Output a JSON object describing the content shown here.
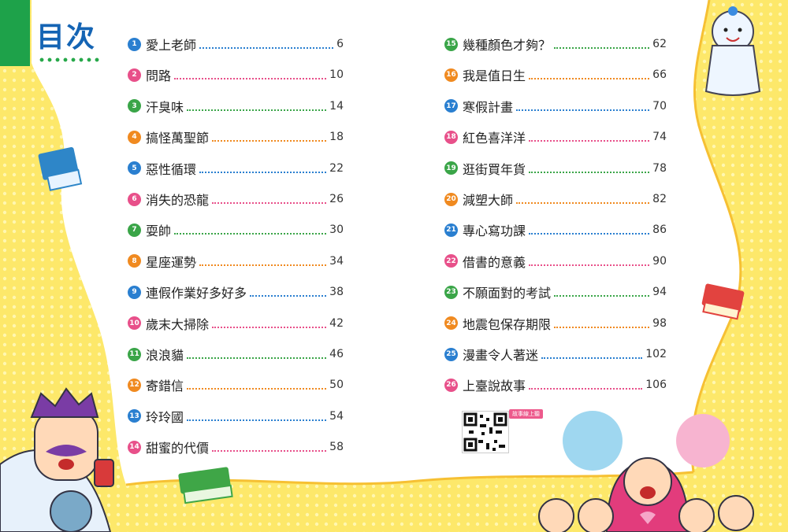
{
  "title": "目次",
  "colors": {
    "accent_green": "#1ea24a",
    "title_blue": "#1464b4",
    "background_yellow": "#fde86a"
  },
  "qr": {
    "label": "故事線上聽"
  },
  "toc_left": [
    {
      "num": "1",
      "title": "愛上老師",
      "page": "6",
      "color": "#2a7fd0"
    },
    {
      "num": "2",
      "title": "問路",
      "page": "10",
      "color": "#e8508a"
    },
    {
      "num": "3",
      "title": "汗臭味",
      "page": "14",
      "color": "#3aa548"
    },
    {
      "num": "4",
      "title": "搞怪萬聖節",
      "page": "18",
      "color": "#f08a20"
    },
    {
      "num": "5",
      "title": "惡性循環",
      "page": "22",
      "color": "#2a7fd0"
    },
    {
      "num": "6",
      "title": "消失的恐龍",
      "page": "26",
      "color": "#e8508a"
    },
    {
      "num": "7",
      "title": "耍帥",
      "page": "30",
      "color": "#3aa548"
    },
    {
      "num": "8",
      "title": "星座運勢",
      "page": "34",
      "color": "#f08a20"
    },
    {
      "num": "9",
      "title": "連假作業好多好多",
      "page": "38",
      "color": "#2a7fd0"
    },
    {
      "num": "10",
      "title": "歲末大掃除",
      "page": "42",
      "color": "#e8508a"
    },
    {
      "num": "11",
      "title": "浪浪貓",
      "page": "46",
      "color": "#3aa548"
    },
    {
      "num": "12",
      "title": "寄錯信",
      "page": "50",
      "color": "#f08a20"
    },
    {
      "num": "13",
      "title": "玲玲國",
      "page": "54",
      "color": "#2a7fd0"
    },
    {
      "num": "14",
      "title": "甜蜜的代價",
      "page": "58",
      "color": "#e8508a"
    }
  ],
  "toc_right": [
    {
      "num": "15",
      "title": "幾種顏色才夠？",
      "page": "62",
      "color": "#3aa548"
    },
    {
      "num": "16",
      "title": "我是值日生",
      "page": "66",
      "color": "#f08a20"
    },
    {
      "num": "17",
      "title": "寒假計畫",
      "page": "70",
      "color": "#2a7fd0"
    },
    {
      "num": "18",
      "title": "紅色喜洋洋",
      "page": "74",
      "color": "#e8508a"
    },
    {
      "num": "19",
      "title": "逛街買年貨",
      "page": "78",
      "color": "#3aa548"
    },
    {
      "num": "20",
      "title": "減塑大師",
      "page": "82",
      "color": "#f08a20"
    },
    {
      "num": "21",
      "title": "專心寫功課",
      "page": "86",
      "color": "#2a7fd0"
    },
    {
      "num": "22",
      "title": "借書的意義",
      "page": "90",
      "color": "#e8508a"
    },
    {
      "num": "23",
      "title": "不願面對的考試",
      "page": "94",
      "color": "#3aa548"
    },
    {
      "num": "24",
      "title": "地震包保存期限",
      "page": "98",
      "color": "#f08a20"
    },
    {
      "num": "25",
      "title": "漫畫令人著迷",
      "page": "102",
      "color": "#2a7fd0"
    },
    {
      "num": "26",
      "title": "上臺說故事",
      "page": "106",
      "color": "#e8508a"
    }
  ]
}
